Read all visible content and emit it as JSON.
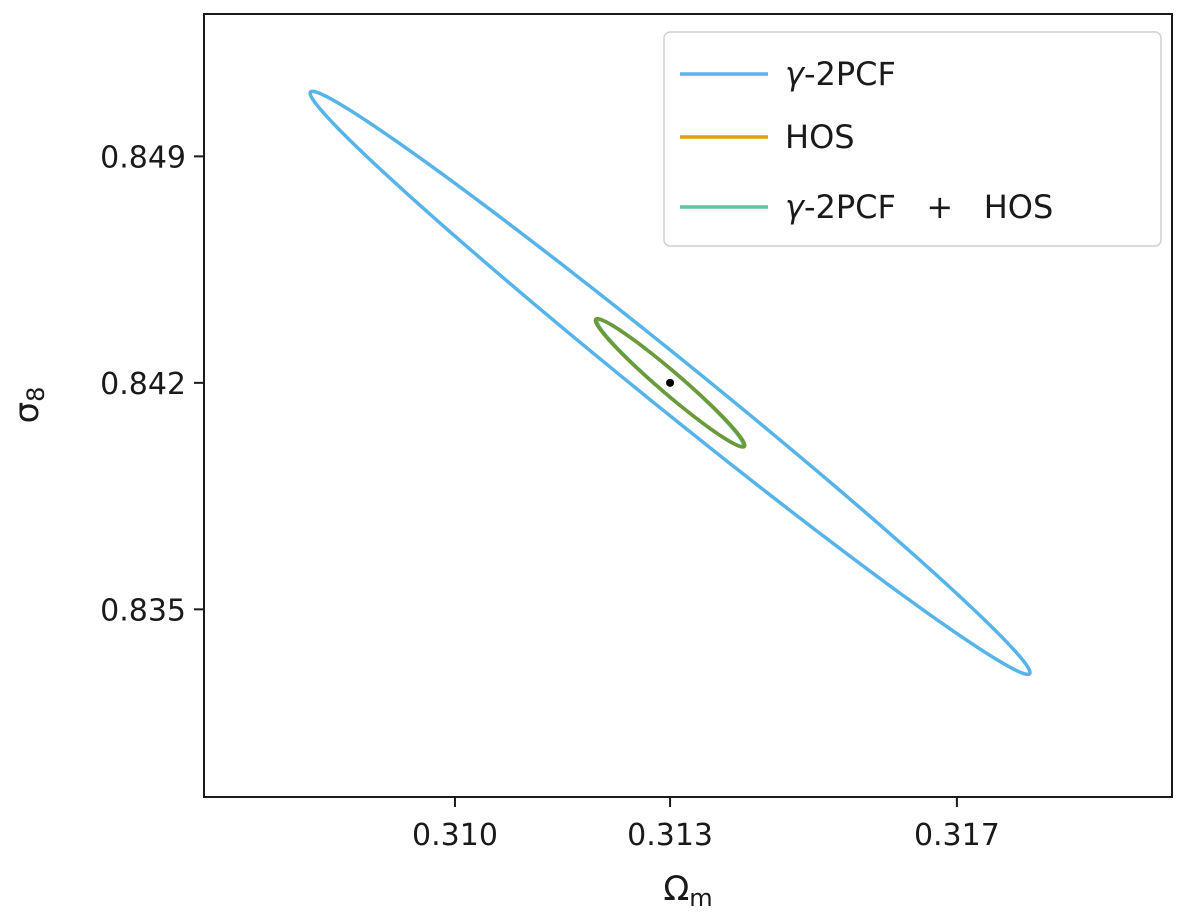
{
  "chart_data": {
    "type": "line",
    "subtype": "confidence-ellipses",
    "title": "",
    "xlabel": "Ω",
    "xlabel_sub": "m",
    "ylabel": "σ",
    "ylabel_sub": "8",
    "xlim": [
      0.3065,
      0.32
    ],
    "ylim": [
      0.8292,
      0.8534
    ],
    "xticks": [
      0.31,
      0.313,
      0.317
    ],
    "xtick_labels": [
      "0.310",
      "0.313",
      "0.317"
    ],
    "yticks": [
      0.835,
      0.842,
      0.849
    ],
    "ytick_labels": [
      "0.835",
      "0.842",
      "0.849"
    ],
    "grid": false,
    "legend_position": "top-right",
    "fiducial": {
      "x": 0.313,
      "y": 0.842
    },
    "series": [
      {
        "name": "γ-2PCF",
        "legend_label": "γ-2PCF",
        "color": "#56b4e9",
        "ellipse": {
          "center": [
            0.313,
            0.842
          ],
          "x_extent": 0.00502,
          "y_extent": 0.00901,
          "correlation": -0.9936
        }
      },
      {
        "name": "HOS",
        "legend_label": "HOS",
        "color": "#e69f00",
        "ellipse": {
          "center": [
            0.313,
            0.842
          ],
          "x_extent": 0.00104,
          "y_extent": 0.00198,
          "correlation": -0.9745
        }
      },
      {
        "name": "γ-2PCF + HOS",
        "legend_label": "γ-2PCF   +   HOS",
        "color": "#66c2a5",
        "ellipse": {
          "center": [
            0.313,
            0.842
          ],
          "x_extent": 0.00102,
          "y_extent": 0.00196,
          "correlation": -0.9745
        }
      }
    ],
    "overlap_color": "#6a9a3a"
  }
}
